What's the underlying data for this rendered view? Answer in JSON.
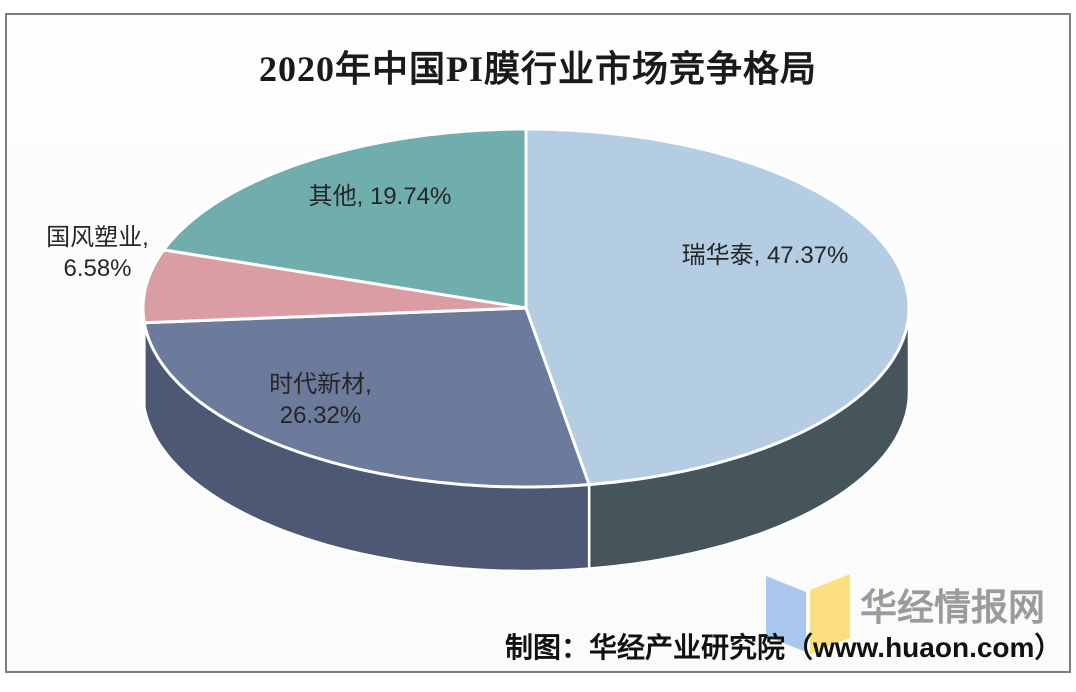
{
  "title": "2020年中国PI膜行业市场竞争格局",
  "chart_data": {
    "type": "pie",
    "effect": "3d",
    "title": "2020年中国PI膜行业市场竞争格局",
    "unit": "%",
    "start_angle_deg": 0,
    "direction": "clockwise",
    "slices": [
      {
        "name": "瑞华泰",
        "value": 47.37,
        "label": "瑞华泰, 47.37%",
        "color": "#B5CDE3",
        "side_color": "#46555C"
      },
      {
        "name": "时代新材",
        "value": 26.32,
        "label_lines": [
          "时代新材,",
          "26.32%"
        ],
        "color": "#6C7A9C",
        "side_color": "#4D5875"
      },
      {
        "name": "国风塑业",
        "value": 6.58,
        "label_lines": [
          "国风塑业,",
          "6.58%"
        ],
        "color": "#DA9DA3",
        "side_color": "#A8747C"
      },
      {
        "name": "其他",
        "value": 19.74,
        "label": "其他, 19.74%",
        "color": "#6FAEAC",
        "side_color": "#4A7A78"
      }
    ]
  },
  "footer": {
    "credit": "制图：华经产业研究院（www.huaon.com）"
  },
  "logo": {
    "text": "华经情报网",
    "book_colors": {
      "left": "#A9C7EF",
      "right": "#FBDF7E"
    }
  }
}
